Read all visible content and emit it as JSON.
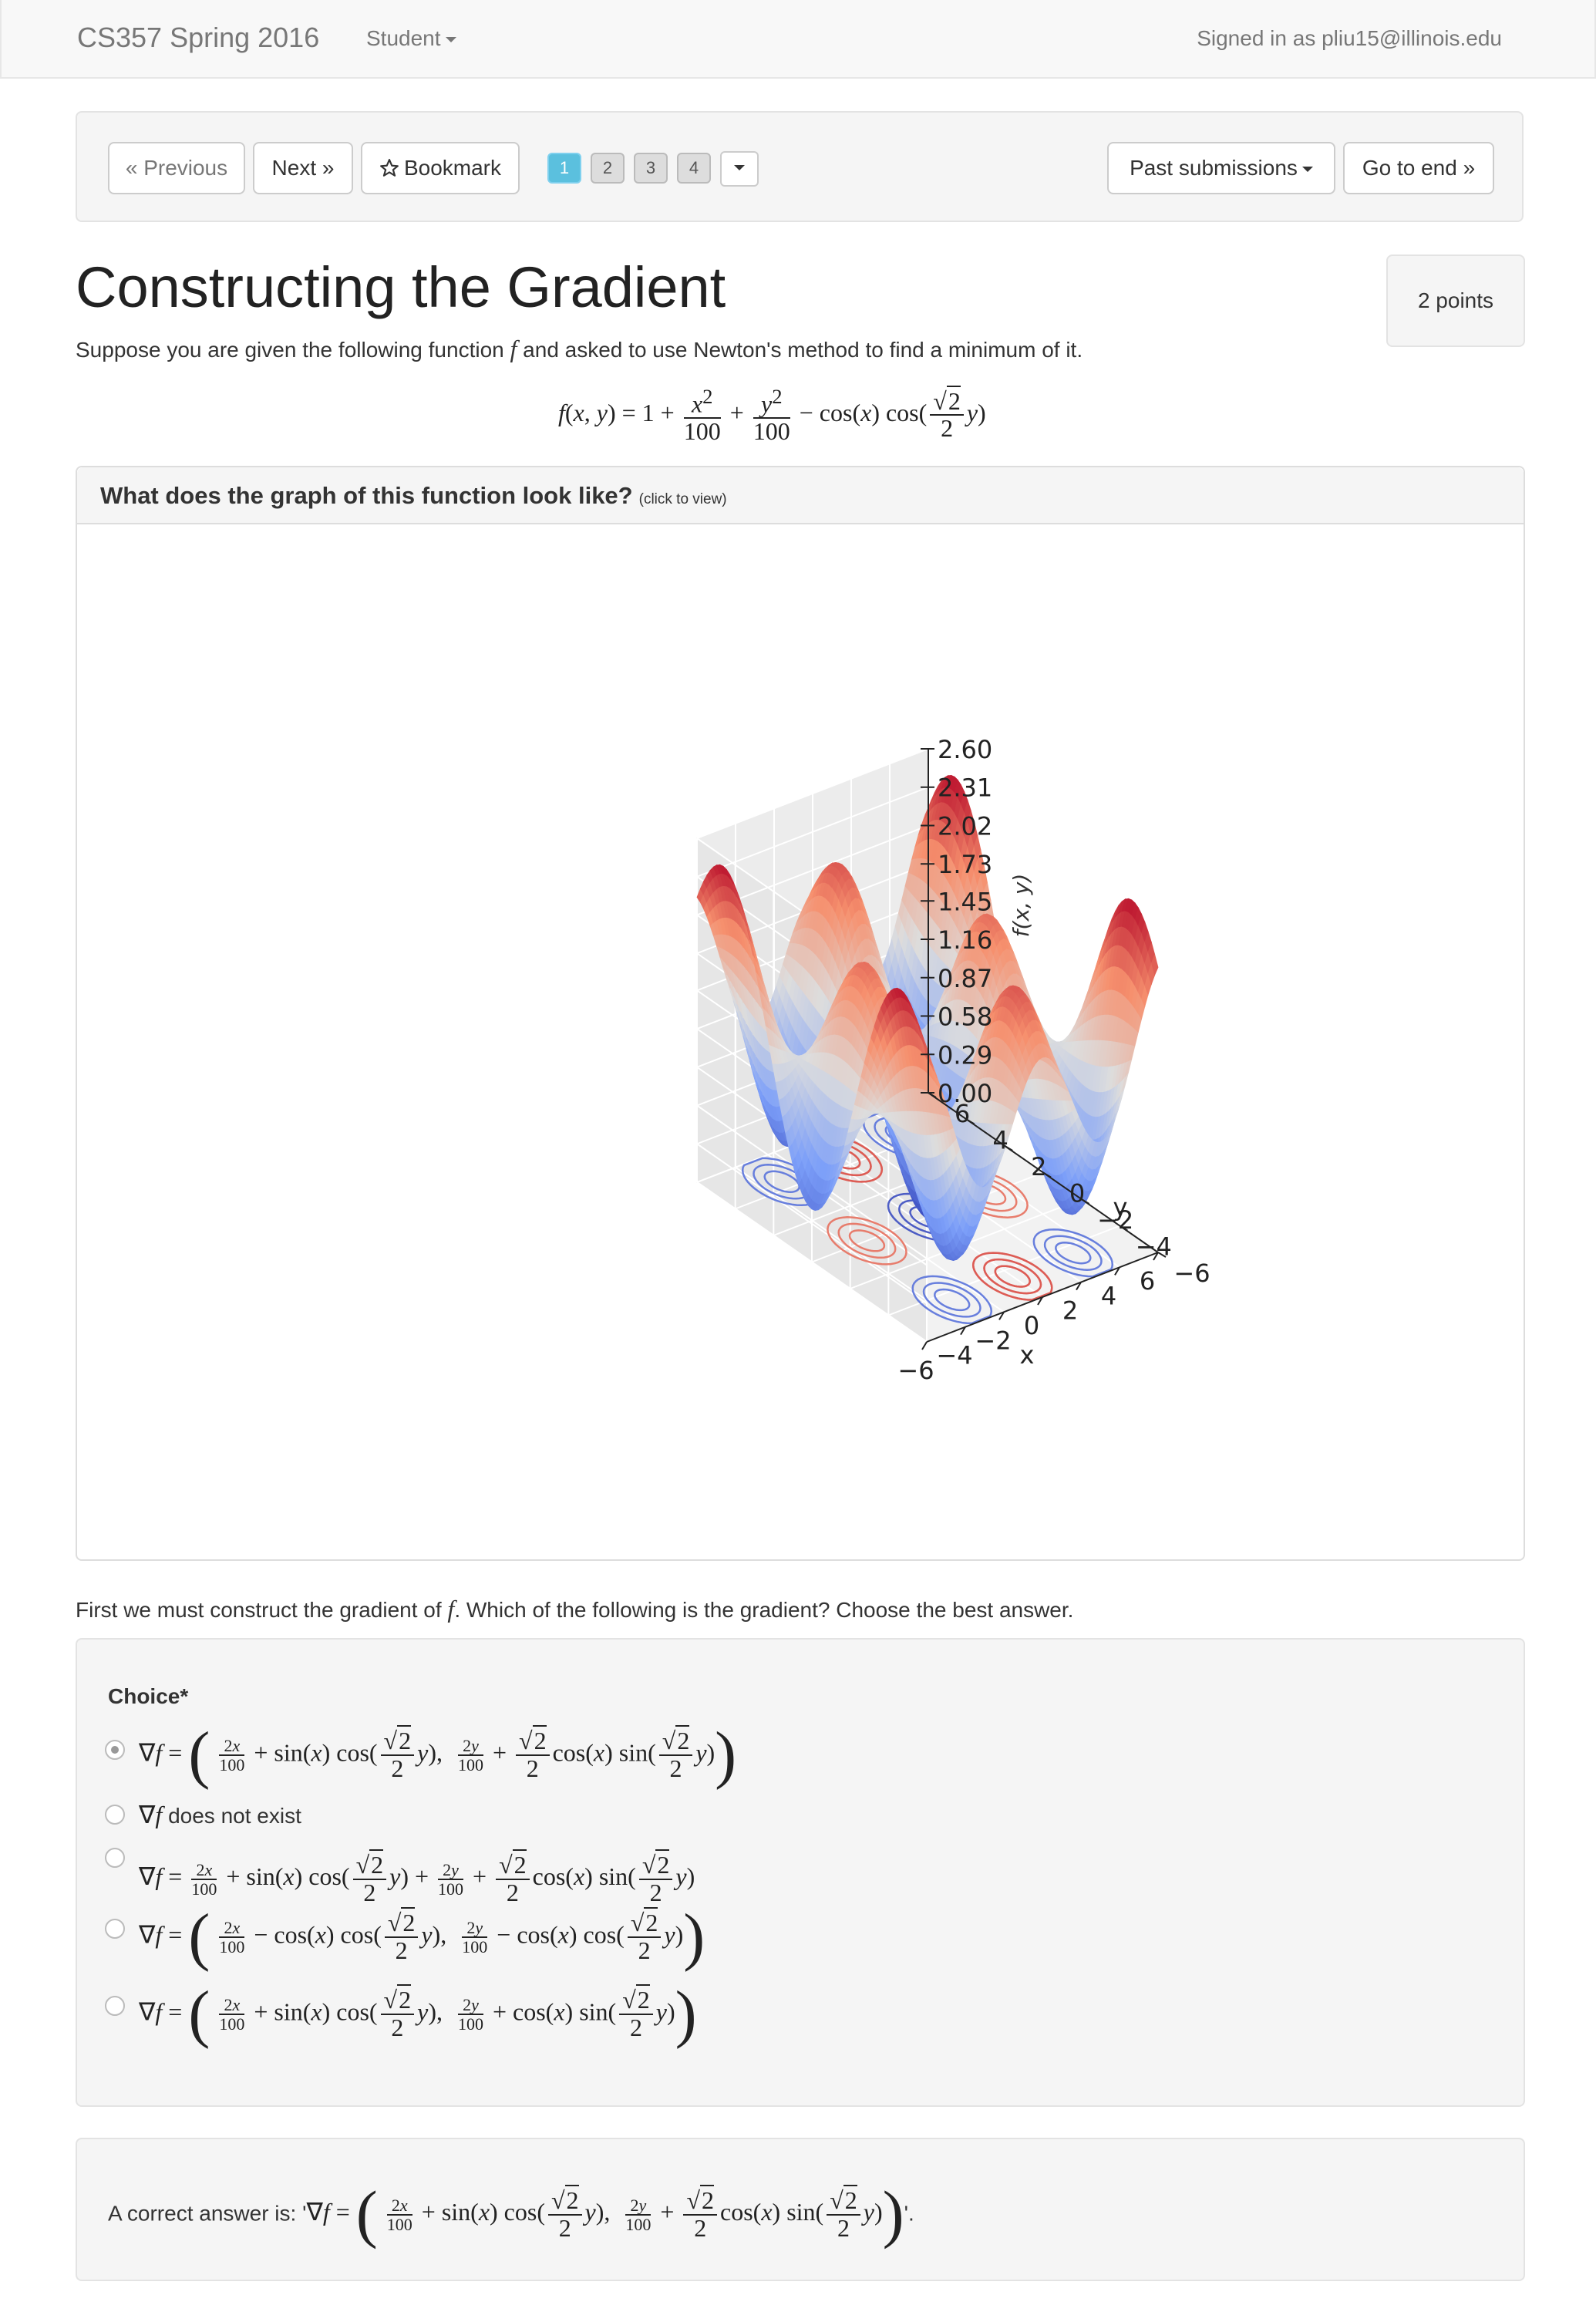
{
  "navbar": {
    "brand": "CS357 Spring 2016",
    "role_menu": "Student",
    "signed_in": "Signed in as pliu15@illinois.edu"
  },
  "question_nav": {
    "previous": "« Previous",
    "next": "Next »",
    "bookmark": "Bookmark",
    "pages": [
      "1",
      "2",
      "3",
      "4"
    ],
    "active_page": "1",
    "past_submissions": "Past submissions",
    "go_to_end": "Go to end »"
  },
  "question": {
    "title": "Constructing the Gradient",
    "points": "2 points",
    "intro_pre": "Suppose you are given the following function ",
    "intro_var": "f",
    "intro_post": " and asked to use Newton's method to find a minimum of it.",
    "equation": "f(x, y) = 1 + x²/100 + y²/100 − cos(x) cos(√2/2 y)"
  },
  "graph_panel": {
    "heading": "What does the graph of this function look like?",
    "hint": "(click to view)"
  },
  "chart_data": {
    "type": "surface",
    "title": "",
    "xlabel": "x",
    "ylabel": "y",
    "zlabel": "f(x, y)",
    "x_ticks": [
      "−6",
      "−4",
      "−2",
      "0",
      "2",
      "4",
      "6"
    ],
    "y_ticks": [
      "−6",
      "−4",
      "−2",
      "0",
      "2",
      "4",
      "6"
    ],
    "z_ticks": [
      "0.00",
      "0.29",
      "0.58",
      "0.87",
      "1.16",
      "1.45",
      "1.73",
      "2.02",
      "2.31",
      "2.60"
    ],
    "xlim": [
      -6,
      6
    ],
    "ylim": [
      -6,
      6
    ],
    "zlim": [
      0.0,
      2.6
    ],
    "colormap": "coolwarm",
    "grid": true
  },
  "prompt": {
    "pre": "First we must construct the gradient of ",
    "var": "f",
    "post": ". Which of the following is the gradient? Choose the best answer."
  },
  "choices": {
    "label": "Choice*",
    "options": [
      "∇f = ( 2x/100 + sin(x) cos(√2/2 y),  2y/100 + √2/2 cos(x) sin(√2/2 y) )",
      "∇f does not exist",
      "∇f = 2x/100 + sin(x) cos(√2/2 y) + 2y/100 + √2/2 cos(x) sin(√2/2 y)",
      "∇f = ( 2x/100 − cos(x) cos(√2/2 y),  2y/100 − cos(x) cos(√2/2 y) )",
      "∇f = ( 2x/100 + sin(x) cos(√2/2 y),  2y/100 + cos(x) sin(√2/2 y) )"
    ],
    "option2_rest": " does not exist",
    "selected_index": 0
  },
  "answer": {
    "prefix": "A correct answer is: '",
    "suffix": "'."
  },
  "colors": {
    "accent": "#5bc0de",
    "well_bg": "#f5f5f5",
    "navbar_bg": "#f8f8f8"
  }
}
